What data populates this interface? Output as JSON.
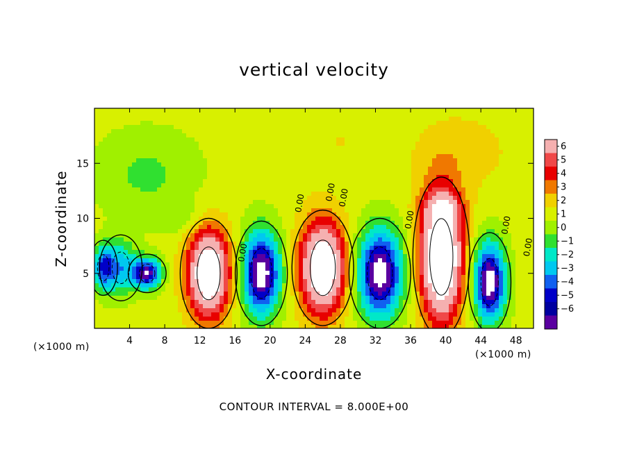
{
  "chart_data": {
    "type": "heatmap",
    "title": "vertical velocity",
    "xlabel": "X-coordinate",
    "ylabel": "Z-coordinate",
    "x_unit_label_left": "(×1000 m)",
    "x_unit_label_right": "(×1000 m)",
    "xlim": [
      0,
      50
    ],
    "ylim": [
      0,
      20
    ],
    "x_ticks": [
      4,
      8,
      12,
      16,
      20,
      24,
      28,
      32,
      36,
      40,
      44,
      48
    ],
    "y_ticks": [
      5,
      10,
      15
    ],
    "colorbar": {
      "ticks": [
        6,
        5,
        4,
        3,
        2,
        1,
        0,
        -1,
        -2,
        -3,
        -4,
        -5,
        -6
      ],
      "colors": [
        "#f5b0b0",
        "#f04848",
        "#e80000",
        "#f07800",
        "#f0d000",
        "#d8f000",
        "#a0f000",
        "#30e030",
        "#00e8c8",
        "#00c8f0",
        "#1060f0",
        "#0000c8",
        "#0000a0",
        "#5a00a0"
      ]
    },
    "contour_labels": [
      "0.00",
      "0.00",
      "0.00",
      "0.00",
      "0.00",
      "0.00",
      "0.00"
    ],
    "cells": [
      {
        "x": 6,
        "z": 5,
        "w": -7,
        "rx": 1.6,
        "rz": 1.4
      },
      {
        "x": 3,
        "z": 5.5,
        "w": -4,
        "rx": 1.8,
        "rz": 2.4
      },
      {
        "x": 1,
        "z": 5.5,
        "w": -5,
        "rx": 1.2,
        "rz": 2.0
      },
      {
        "x": 13,
        "z": 5,
        "w": 9,
        "rx": 2.4,
        "rz": 4.0
      },
      {
        "x": 19,
        "z": 5,
        "w": -8,
        "rx": 2.2,
        "rz": 3.8
      },
      {
        "x": 26,
        "z": 5.5,
        "w": 9,
        "rx": 2.6,
        "rz": 4.2
      },
      {
        "x": 32.5,
        "z": 5,
        "w": -8,
        "rx": 2.6,
        "rz": 4.0
      },
      {
        "x": 39.5,
        "z": 6.5,
        "w": 10,
        "rx": 2.4,
        "rz": 5.8
      },
      {
        "x": 45,
        "z": 4.2,
        "w": -8,
        "rx": 1.8,
        "rz": 3.6
      }
    ]
  },
  "contour_interval_text": "CONTOUR INTERVAL = 8.000E+00"
}
